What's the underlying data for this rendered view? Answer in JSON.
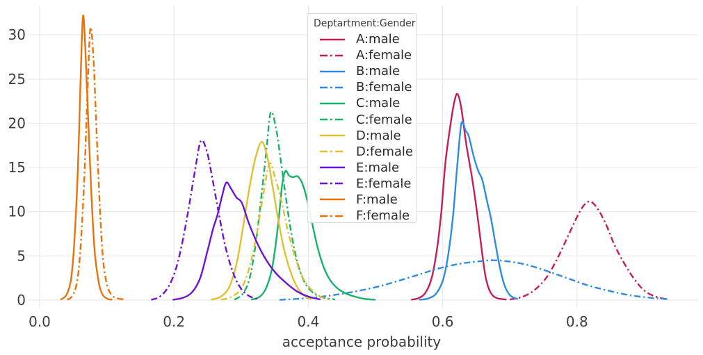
{
  "figure": {
    "xlabel": "acceptance probability",
    "legend_title": "Deptartment:Gender"
  },
  "chart_data": {
    "type": "line",
    "subtype": "kde-density",
    "title": "",
    "xlabel": "acceptance probability",
    "ylabel": "",
    "xlim": [
      -0.02,
      0.98
    ],
    "ylim": [
      0,
      33.5
    ],
    "grid": true,
    "x_ticks": [
      0.0,
      0.2,
      0.4,
      0.6,
      0.8
    ],
    "x_tick_labels": [
      "0.0",
      "0.2",
      "0.4",
      "0.6",
      "0.8"
    ],
    "y_ticks": [
      0,
      5,
      10,
      15,
      20,
      25,
      30
    ],
    "y_tick_labels": [
      "0",
      "5",
      "10",
      "15",
      "20",
      "25",
      "30"
    ],
    "legend": {
      "title": "Deptartment:Gender",
      "position": "upper-center-inside"
    },
    "palette": {
      "A": "#c61c5a",
      "B": "#2e8ce0",
      "C": "#15b469",
      "D": "#e0c030",
      "E": "#6d13d4",
      "F": "#ea720d"
    },
    "series": [
      {
        "name": "A:male",
        "department": "A",
        "gender": "male",
        "color": "#c61c5a",
        "style": "solid",
        "points": [
          [
            0.553,
            0.04
          ],
          [
            0.565,
            0.25
          ],
          [
            0.575,
            0.9
          ],
          [
            0.584,
            2.6
          ],
          [
            0.592,
            6.0
          ],
          [
            0.598,
            10.0
          ],
          [
            0.604,
            15.5
          ],
          [
            0.611,
            19.5
          ],
          [
            0.617,
            22.3
          ],
          [
            0.622,
            23.3
          ],
          [
            0.628,
            21.6
          ],
          [
            0.635,
            17.7
          ],
          [
            0.644,
            13.7
          ],
          [
            0.651,
            10.0
          ],
          [
            0.658,
            5.8
          ],
          [
            0.664,
            2.6
          ],
          [
            0.671,
            0.9
          ],
          [
            0.68,
            0.25
          ],
          [
            0.695,
            0.06
          ]
        ]
      },
      {
        "name": "A:female",
        "department": "A",
        "gender": "female",
        "color": "#c61c5a",
        "style": "dashdot",
        "points": [
          [
            0.7,
            0.07
          ],
          [
            0.718,
            0.35
          ],
          [
            0.736,
            1.1
          ],
          [
            0.755,
            2.6
          ],
          [
            0.772,
            4.9
          ],
          [
            0.787,
            7.3
          ],
          [
            0.8,
            9.4
          ],
          [
            0.81,
            10.7
          ],
          [
            0.82,
            11.15
          ],
          [
            0.831,
            10.3
          ],
          [
            0.843,
            8.6
          ],
          [
            0.856,
            6.2
          ],
          [
            0.87,
            4.2
          ],
          [
            0.885,
            2.4
          ],
          [
            0.9,
            1.1
          ],
          [
            0.915,
            0.45
          ],
          [
            0.932,
            0.12
          ]
        ]
      },
      {
        "name": "B:male",
        "department": "B",
        "gender": "male",
        "color": "#2e8ce0",
        "style": "solid",
        "points": [
          [
            0.565,
            0.04
          ],
          [
            0.579,
            0.2
          ],
          [
            0.591,
            0.8
          ],
          [
            0.601,
            2.4
          ],
          [
            0.609,
            5.5
          ],
          [
            0.616,
            10.0
          ],
          [
            0.622,
            15.5
          ],
          [
            0.628,
            20.0
          ],
          [
            0.634,
            19.2
          ],
          [
            0.639,
            18.5
          ],
          [
            0.646,
            16.3
          ],
          [
            0.653,
            14.6
          ],
          [
            0.659,
            13.6
          ],
          [
            0.666,
            11.2
          ],
          [
            0.672,
            9.2
          ],
          [
            0.679,
            6.2
          ],
          [
            0.686,
            3.4
          ],
          [
            0.693,
            1.5
          ],
          [
            0.701,
            0.5
          ],
          [
            0.712,
            0.1
          ]
        ]
      },
      {
        "name": "B:female",
        "department": "B",
        "gender": "female",
        "color": "#2e8ce0",
        "style": "dashdot",
        "points": [
          [
            0.357,
            0.03
          ],
          [
            0.385,
            0.15
          ],
          [
            0.415,
            0.35
          ],
          [
            0.445,
            0.65
          ],
          [
            0.475,
            1.05
          ],
          [
            0.505,
            1.55
          ],
          [
            0.535,
            2.2
          ],
          [
            0.565,
            2.9
          ],
          [
            0.595,
            3.6
          ],
          [
            0.625,
            4.1
          ],
          [
            0.65,
            4.35
          ],
          [
            0.675,
            4.5
          ],
          [
            0.7,
            4.35
          ],
          [
            0.725,
            4.0
          ],
          [
            0.755,
            3.3
          ],
          [
            0.785,
            2.5
          ],
          [
            0.815,
            1.7
          ],
          [
            0.845,
            1.1
          ],
          [
            0.875,
            0.6
          ],
          [
            0.905,
            0.3
          ],
          [
            0.937,
            0.1
          ]
        ]
      },
      {
        "name": "C:male",
        "department": "C",
        "gender": "male",
        "color": "#15b469",
        "style": "solid",
        "points": [
          [
            0.315,
            0.04
          ],
          [
            0.328,
            0.4
          ],
          [
            0.338,
            1.5
          ],
          [
            0.347,
            4.0
          ],
          [
            0.355,
            8.5
          ],
          [
            0.361,
            13.0
          ],
          [
            0.366,
            14.6
          ],
          [
            0.371,
            14.1
          ],
          [
            0.377,
            13.9
          ],
          [
            0.384,
            14.0
          ],
          [
            0.391,
            13.2
          ],
          [
            0.398,
            11.4
          ],
          [
            0.406,
            8.6
          ],
          [
            0.414,
            5.9
          ],
          [
            0.423,
            3.7
          ],
          [
            0.433,
            2.2
          ],
          [
            0.444,
            1.3
          ],
          [
            0.456,
            0.75
          ],
          [
            0.469,
            0.4
          ],
          [
            0.483,
            0.15
          ],
          [
            0.5,
            0.04
          ]
        ]
      },
      {
        "name": "C:female",
        "department": "C",
        "gender": "female",
        "color": "#15b469",
        "style": "dashdot",
        "points": [
          [
            0.29,
            0.04
          ],
          [
            0.302,
            0.7
          ],
          [
            0.312,
            2.3
          ],
          [
            0.321,
            6.0
          ],
          [
            0.329,
            11.0
          ],
          [
            0.337,
            16.5
          ],
          [
            0.344,
            21.2
          ],
          [
            0.352,
            19.4
          ],
          [
            0.359,
            15.8
          ],
          [
            0.367,
            11.4
          ],
          [
            0.375,
            7.4
          ],
          [
            0.384,
            4.2
          ],
          [
            0.394,
            2.1
          ],
          [
            0.406,
            0.9
          ],
          [
            0.421,
            0.3
          ],
          [
            0.44,
            0.06
          ]
        ]
      },
      {
        "name": "D:male",
        "department": "D",
        "gender": "male",
        "color": "#e0c030",
        "style": "solid",
        "points": [
          [
            0.255,
            0.04
          ],
          [
            0.27,
            0.4
          ],
          [
            0.283,
            1.6
          ],
          [
            0.294,
            4.4
          ],
          [
            0.304,
            8.8
          ],
          [
            0.313,
            13.0
          ],
          [
            0.322,
            16.3
          ],
          [
            0.331,
            17.9
          ],
          [
            0.339,
            16.2
          ],
          [
            0.347,
            12.8
          ],
          [
            0.355,
            9.2
          ],
          [
            0.364,
            5.7
          ],
          [
            0.374,
            3.1
          ],
          [
            0.384,
            1.4
          ],
          [
            0.394,
            0.5
          ],
          [
            0.404,
            0.1
          ]
        ]
      },
      {
        "name": "D:female",
        "department": "D",
        "gender": "female",
        "color": "#e0c030",
        "style": "dashdot",
        "points": [
          [
            0.27,
            0.04
          ],
          [
            0.285,
            0.35
          ],
          [
            0.3,
            1.3
          ],
          [
            0.312,
            3.6
          ],
          [
            0.322,
            7.0
          ],
          [
            0.331,
            11.0
          ],
          [
            0.342,
            15.4
          ],
          [
            0.351,
            13.7
          ],
          [
            0.36,
            11.2
          ],
          [
            0.37,
            7.7
          ],
          [
            0.381,
            4.7
          ],
          [
            0.392,
            2.5
          ],
          [
            0.404,
            1.2
          ],
          [
            0.417,
            0.45
          ],
          [
            0.43,
            0.12
          ]
        ]
      },
      {
        "name": "E:male",
        "department": "E",
        "gender": "male",
        "color": "#6d13d4",
        "style": "solid",
        "points": [
          [
            0.198,
            0.04
          ],
          [
            0.213,
            0.25
          ],
          [
            0.227,
            0.9
          ],
          [
            0.239,
            2.5
          ],
          [
            0.25,
            5.6
          ],
          [
            0.258,
            8.0
          ],
          [
            0.265,
            9.7
          ],
          [
            0.272,
            11.9
          ],
          [
            0.278,
            13.3
          ],
          [
            0.285,
            12.6
          ],
          [
            0.293,
            11.6
          ],
          [
            0.301,
            11.0
          ],
          [
            0.311,
            8.8
          ],
          [
            0.323,
            6.6
          ],
          [
            0.336,
            4.7
          ],
          [
            0.35,
            3.2
          ],
          [
            0.366,
            2.0
          ],
          [
            0.383,
            1.0
          ],
          [
            0.4,
            0.4
          ],
          [
            0.418,
            0.08
          ]
        ]
      },
      {
        "name": "E:female",
        "department": "E",
        "gender": "female",
        "color": "#6d13d4",
        "style": "dashdot",
        "points": [
          [
            0.166,
            0.04
          ],
          [
            0.178,
            0.35
          ],
          [
            0.19,
            1.3
          ],
          [
            0.201,
            3.1
          ],
          [
            0.211,
            6.0
          ],
          [
            0.221,
            10.0
          ],
          [
            0.231,
            14.5
          ],
          [
            0.24,
            18.0
          ],
          [
            0.249,
            16.8
          ],
          [
            0.257,
            13.8
          ],
          [
            0.267,
            9.7
          ],
          [
            0.277,
            5.9
          ],
          [
            0.288,
            3.1
          ],
          [
            0.299,
            1.4
          ],
          [
            0.311,
            0.5
          ],
          [
            0.325,
            0.1
          ]
        ]
      },
      {
        "name": "F:male",
        "department": "F",
        "gender": "male",
        "color": "#ea720d",
        "style": "solid",
        "points": [
          [
            0.031,
            0.04
          ],
          [
            0.04,
            0.6
          ],
          [
            0.047,
            2.5
          ],
          [
            0.052,
            7.0
          ],
          [
            0.057,
            15.0
          ],
          [
            0.061,
            25.0
          ],
          [
            0.0645,
            32.1
          ],
          [
            0.068,
            28.5
          ],
          [
            0.072,
            21.0
          ],
          [
            0.077,
            12.0
          ],
          [
            0.082,
            5.5
          ],
          [
            0.088,
            2.0
          ],
          [
            0.094,
            0.6
          ],
          [
            0.101,
            0.15
          ],
          [
            0.108,
            0.04
          ]
        ]
      },
      {
        "name": "F:female",
        "department": "F",
        "gender": "female",
        "color": "#ea720d",
        "style": "dashdot",
        "points": [
          [
            0.041,
            0.04
          ],
          [
            0.049,
            0.5
          ],
          [
            0.056,
            2.2
          ],
          [
            0.061,
            6.0
          ],
          [
            0.066,
            13.0
          ],
          [
            0.071,
            23.0
          ],
          [
            0.0755,
            30.7
          ],
          [
            0.08,
            27.5
          ],
          [
            0.084,
            20.5
          ],
          [
            0.089,
            11.5
          ],
          [
            0.094,
            5.0
          ],
          [
            0.1,
            1.8
          ],
          [
            0.107,
            0.6
          ],
          [
            0.116,
            0.2
          ],
          [
            0.128,
            0.05
          ]
        ]
      }
    ],
    "style_colors": {
      "gridline": "#ebebeb",
      "tick_label": "#3d3d3d",
      "legend_border": "#d9d9d9",
      "background": "#ffffff"
    }
  }
}
